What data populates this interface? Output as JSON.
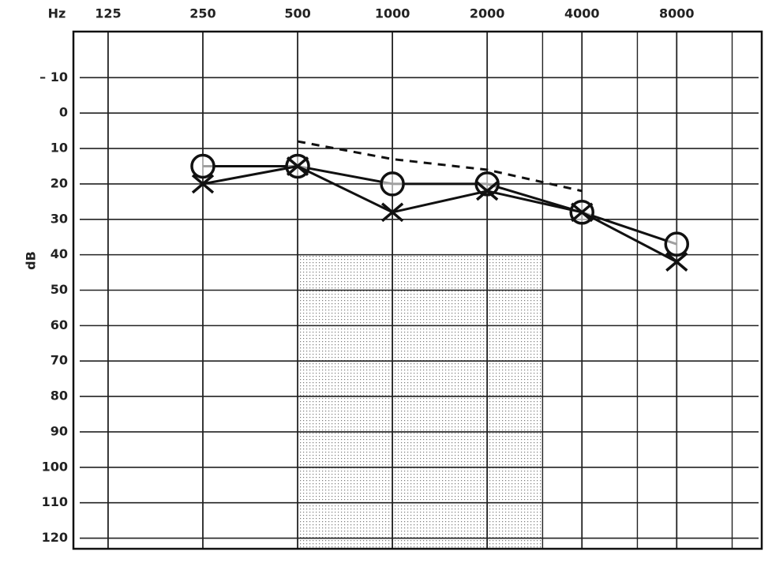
{
  "chart_data": {
    "type": "audiogram",
    "x_label": "Hz",
    "y_label": "dB",
    "x_log": true,
    "xlim": [
      97,
      14900
    ],
    "xticks": [
      125,
      250,
      500,
      1000,
      2000,
      4000,
      8000
    ],
    "x_minor_grid": [
      3000,
      6000,
      12000
    ],
    "ylim": [
      123,
      -23
    ],
    "yticks": [
      {
        "value": -10,
        "label": "– 10"
      },
      0,
      10,
      20,
      30,
      40,
      50,
      60,
      70,
      80,
      90,
      100,
      110,
      120
    ],
    "grid": true,
    "shaded_region": {
      "x": [
        500,
        3000
      ],
      "y": [
        40,
        123
      ],
      "color": "#bbbbbb"
    },
    "series": [
      {
        "marker": "o",
        "line": "solid",
        "color": "#111111",
        "x": [
          250,
          500,
          1000,
          2000,
          4000,
          8000
        ],
        "values": [
          15,
          15,
          20,
          20,
          28,
          37
        ]
      },
      {
        "marker": "x",
        "line": "solid",
        "color": "#111111",
        "x": [
          250,
          500,
          1000,
          2000,
          4000,
          8000
        ],
        "values": [
          20,
          15,
          28,
          22,
          28,
          42
        ]
      },
      {
        "marker": "none",
        "line": "dashed",
        "color": "#111111",
        "x": [
          500,
          1000,
          2000,
          4000
        ],
        "values": [
          8,
          13,
          16,
          22
        ]
      }
    ]
  }
}
